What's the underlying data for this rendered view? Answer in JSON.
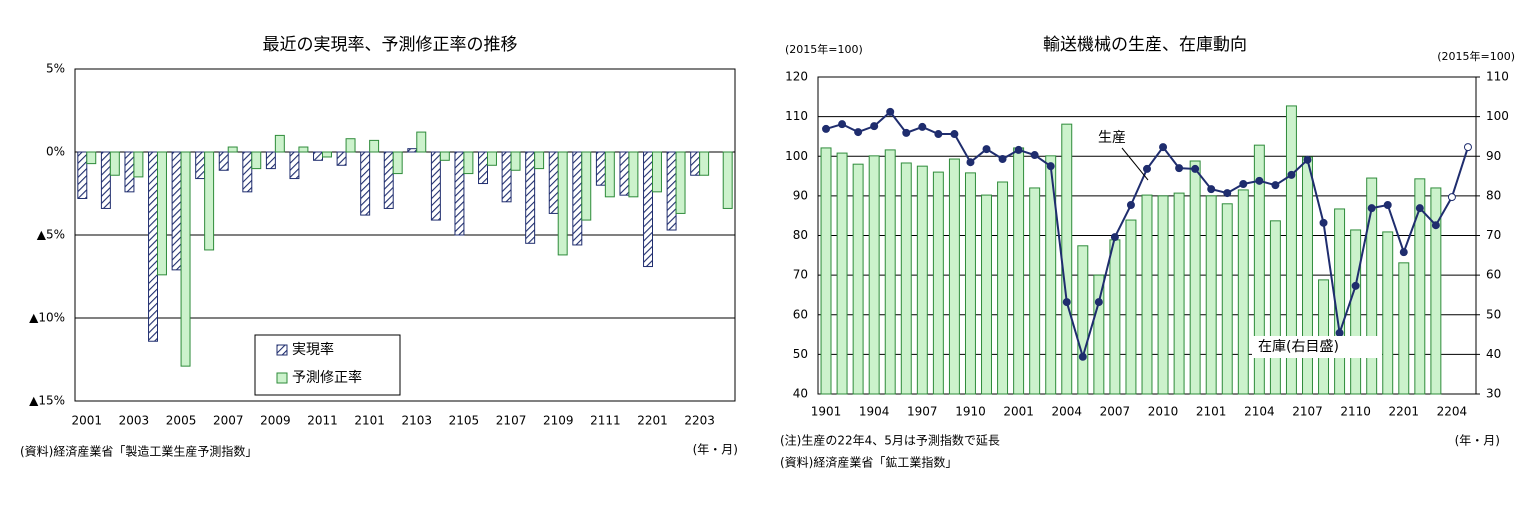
{
  "chart_data": [
    {
      "type": "bar",
      "title": "最近の実現率、予測修正率の推移",
      "categories": [
        "2001",
        null,
        "2003",
        null,
        "2005",
        null,
        "2007",
        null,
        "2009",
        null,
        "2011",
        null,
        "2101",
        null,
        "2103",
        null,
        "2105",
        null,
        "2107",
        null,
        "2109",
        null,
        "2111",
        null,
        "2201",
        null,
        "2203",
        null
      ],
      "series": [
        {
          "name": "実現率",
          "color": "#1f2d6e",
          "pattern": "hatch",
          "values": [
            -2.8,
            -3.4,
            -2.4,
            -11.4,
            -7.1,
            -1.6,
            -1.1,
            -2.4,
            -1.0,
            -1.6,
            -0.5,
            -0.8,
            -3.8,
            -3.4,
            0.2,
            -4.1,
            -5.0,
            -1.9,
            -3.0,
            -5.5,
            -3.7,
            -5.6,
            -2.0,
            -2.6,
            -6.9,
            -4.7,
            -1.4,
            null
          ]
        },
        {
          "name": "予測修正率",
          "color": "#ccf2cc",
          "edge": "#2e8b3a",
          "values": [
            -0.7,
            -1.4,
            -1.5,
            -7.4,
            -12.9,
            -5.9,
            0.3,
            -1.0,
            1.0,
            0.3,
            -0.3,
            0.8,
            0.7,
            -1.3,
            1.2,
            -0.5,
            -1.3,
            -0.8,
            -1.1,
            -1.0,
            -6.2,
            -4.1,
            -2.7,
            -2.7,
            -2.4,
            -3.7,
            -1.4,
            -3.4
          ]
        }
      ],
      "ylim": [
        -15,
        5
      ],
      "yticks": [
        {
          "value": 5,
          "label": "5%"
        },
        {
          "value": 0,
          "label": "0%"
        },
        {
          "value": -5,
          "label": "▲5%"
        },
        {
          "value": -10,
          "label": "▲10%"
        },
        {
          "value": -15,
          "label": "▲15%"
        }
      ],
      "grid": true,
      "legend": "lower-center",
      "x_unit": "(年・月)",
      "notes": [
        "(資料)経済産業省「製造工業生産予測指数」"
      ]
    },
    {
      "type": "combo",
      "title": "輸送機械の生産、在庫動向",
      "y_label": "(2015年=100)",
      "y2_label": "(2015年=100)",
      "categories": [
        "1901",
        null,
        null,
        "1904",
        null,
        null,
        "1907",
        null,
        null,
        "1910",
        null,
        null,
        "2001",
        null,
        null,
        "2004",
        null,
        null,
        "2007",
        null,
        null,
        "2010",
        null,
        null,
        "2101",
        null,
        null,
        "2104",
        null,
        null,
        "2107",
        null,
        null,
        "2110",
        null,
        null,
        "2201",
        null,
        null,
        "2204",
        null
      ],
      "series": [
        {
          "name": "在庫(右目盛)",
          "kind": "bar",
          "axis": "y2",
          "color": "#ccf2cc",
          "edge": "#2e8b3a",
          "values": [
            92.1,
            90.8,
            88.0,
            90.1,
            91.6,
            88.3,
            87.5,
            86.0,
            89.3,
            85.8,
            80.2,
            83.5,
            92.1,
            82.0,
            90.1,
            98.1,
            67.4,
            60.0,
            68.9,
            73.9,
            80.2,
            80.0,
            80.7,
            88.8,
            80.0,
            78.0,
            81.5,
            92.8,
            73.7,
            102.7,
            89.8,
            58.8,
            76.7,
            71.4,
            84.5,
            70.9,
            63.1,
            84.3,
            82.0,
            null,
            null
          ]
        },
        {
          "name": "生産",
          "kind": "line",
          "color": "#1f2d6e",
          "hollow_from": 39,
          "values": [
            106.9,
            108.1,
            106.1,
            107.6,
            111.2,
            105.9,
            107.4,
            105.6,
            105.6,
            98.5,
            101.8,
            99.3,
            101.6,
            100.3,
            97.5,
            63.2,
            49.4,
            63.2,
            79.6,
            87.7,
            96.8,
            102.3,
            97.0,
            96.8,
            91.7,
            90.7,
            93.0,
            93.8,
            92.7,
            95.3,
            99.1,
            83.2,
            55.4,
            67.3,
            86.9,
            87.7,
            75.8,
            86.9,
            82.6,
            89.7,
            102.3
          ]
        }
      ],
      "ylim": [
        40,
        120
      ],
      "yticks": [
        40,
        50,
        60,
        70,
        80,
        90,
        100,
        110,
        120
      ],
      "y2lim": [
        30,
        110
      ],
      "y2ticks": [
        30,
        40,
        50,
        60,
        70,
        80,
        90,
        100,
        110
      ],
      "grid": true,
      "x_unit": "(年・月)",
      "notes": [
        "(注)生産の22年4、5月は予測指数で延長",
        "(資料)経済産業省「鉱工業指数」"
      ]
    }
  ]
}
